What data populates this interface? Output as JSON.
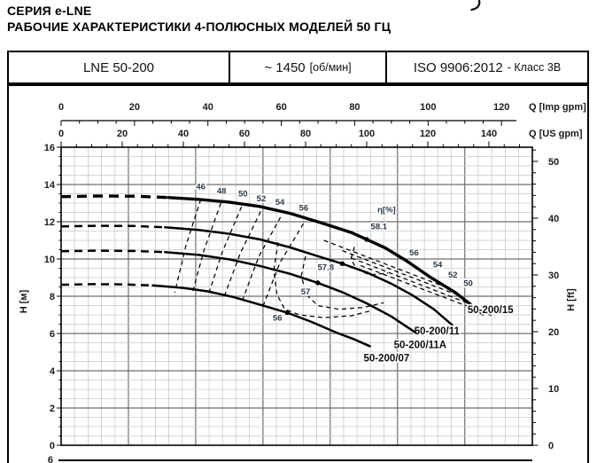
{
  "titles": {
    "series": "СЕРИЯ e-LNE",
    "subtitle": "РАБОЧИЕ ХАРАКТЕРИСТИКИ 4-ПОЛЮСНЫХ МОДЕЛЕЙ 50 ГЦ",
    "top_right_fragment": ")"
  },
  "header_table": {
    "model": "LNE 50-200",
    "speed": "~ 1450",
    "speed_unit": "[об/мин]",
    "standard": "ISO 9906:2012",
    "standard_class": "- Класс 3В"
  },
  "chart_data": {
    "type": "line",
    "title": "Pump performance curves H-Q, LNE 50-200, 4-pole, 50 Hz",
    "x_axes": [
      {
        "id": "imp",
        "label": "Q [Imp gpm]",
        "major_ticks": [
          0,
          20,
          40,
          60,
          80,
          100,
          120
        ],
        "minor_step": 5
      },
      {
        "id": "us",
        "label": "Q [US gpm]",
        "major_ticks": [
          0,
          20,
          40,
          60,
          80,
          100,
          120,
          140
        ],
        "minor_step": 5,
        "range": [
          0,
          154
        ]
      }
    ],
    "y_axis_left": {
      "label": "H [м]",
      "major_ticks": [
        0,
        2,
        4,
        6,
        8,
        10,
        12,
        14,
        16
      ],
      "minor_step": 0.5,
      "range": [
        0,
        16
      ]
    },
    "y_axis_right": {
      "label": "H [ft]",
      "major_ticks": [
        0,
        10,
        20,
        30,
        40,
        50
      ],
      "minor_step": 2
    },
    "grid": {
      "x_minor_usgpm": 4.403,
      "x_major_usgpm": 22.015,
      "y_minor_m": 0.5,
      "y_major_m": 2,
      "grid_on": true
    },
    "series": [
      {
        "name": "50-200/15",
        "width": 3.4,
        "bep": [
          100,
          11.05
        ],
        "label_pos": [
          140.5,
          7.1
        ],
        "dashed": [
          [
            0,
            13.35
          ],
          [
            12,
            13.38
          ],
          [
            24,
            13.37
          ],
          [
            35,
            13.3
          ]
        ],
        "solid": [
          [
            35,
            13.3
          ],
          [
            45,
            13.2
          ],
          [
            55,
            13.05
          ],
          [
            65,
            12.82
          ],
          [
            75,
            12.45
          ],
          [
            85,
            11.95
          ],
          [
            95,
            11.42
          ],
          [
            100,
            11.05
          ],
          [
            106,
            10.6
          ],
          [
            113,
            9.9
          ],
          [
            121,
            9.0
          ],
          [
            129,
            8.2
          ],
          [
            138,
            7.05
          ]
        ]
      },
      {
        "name": "50-200/11",
        "width": 2.5,
        "bep": [
          92,
          9.75
        ],
        "label_pos": [
          123,
          5.95
        ],
        "dashed": [
          [
            0,
            11.75
          ],
          [
            12,
            11.78
          ],
          [
            24,
            11.77
          ],
          [
            34,
            11.7
          ]
        ],
        "solid": [
          [
            34,
            11.7
          ],
          [
            45,
            11.56
          ],
          [
            55,
            11.35
          ],
          [
            65,
            11.05
          ],
          [
            75,
            10.62
          ],
          [
            85,
            10.1
          ],
          [
            92,
            9.75
          ],
          [
            100,
            9.28
          ],
          [
            108,
            8.68
          ],
          [
            115,
            8.05
          ],
          [
            122,
            7.3
          ],
          [
            128,
            6.45
          ]
        ]
      },
      {
        "name": "50-200/11A",
        "width": 2.5,
        "bep": [
          84,
          8.72
        ],
        "label_pos": [
          117.5,
          5.22
        ],
        "dashed": [
          [
            0,
            10.42
          ],
          [
            12,
            10.45
          ],
          [
            24,
            10.43
          ],
          [
            34,
            10.37
          ]
        ],
        "solid": [
          [
            34,
            10.37
          ],
          [
            45,
            10.22
          ],
          [
            55,
            9.98
          ],
          [
            65,
            9.63
          ],
          [
            75,
            9.2
          ],
          [
            84,
            8.72
          ],
          [
            92,
            8.22
          ],
          [
            100,
            7.62
          ],
          [
            108,
            6.92
          ],
          [
            116,
            6.05
          ]
        ]
      },
      {
        "name": "50-200/07",
        "width": 2.5,
        "bep": [
          74,
          7.12
        ],
        "label_pos": [
          106.5,
          4.5
        ],
        "dashed": [
          [
            0,
            8.62
          ],
          [
            10,
            8.65
          ],
          [
            20,
            8.64
          ],
          [
            30,
            8.58
          ]
        ],
        "solid": [
          [
            30,
            8.58
          ],
          [
            40,
            8.45
          ],
          [
            48,
            8.26
          ],
          [
            56,
            7.97
          ],
          [
            64,
            7.6
          ],
          [
            74,
            7.12
          ],
          [
            82,
            6.62
          ],
          [
            90,
            6.05
          ],
          [
            96,
            5.68
          ],
          [
            101,
            5.32
          ]
        ]
      }
    ],
    "efficiency": {
      "header": "η[%]",
      "header_pos": [
        106.5,
        12.5
      ],
      "left_contours": [
        {
          "value": "46",
          "label_pos": [
            45.7,
            13.75
          ],
          "pts": [
            [
              45.7,
              13.2
            ],
            [
              40.8,
              10.7
            ],
            [
              37.2,
              8.2
            ]
          ]
        },
        {
          "value": "48",
          "label_pos": [
            52.5,
            13.5
          ],
          "pts": [
            [
              52.3,
              13.0
            ],
            [
              46.8,
              10.5
            ],
            [
              42.8,
              8.1
            ]
          ]
        },
        {
          "value": "50",
          "label_pos": [
            59.5,
            13.35
          ],
          "pts": [
            [
              59.0,
              12.8
            ],
            [
              52.8,
              10.4
            ],
            [
              48.0,
              8.0
            ]
          ]
        },
        {
          "value": "52",
          "label_pos": [
            65.5,
            13.1
          ],
          "pts": [
            [
              65.3,
              12.55
            ],
            [
              58.6,
              10.3
            ],
            [
              53.2,
              7.9
            ]
          ]
        },
        {
          "value": "54",
          "label_pos": [
            71.6,
            12.9
          ],
          "pts": [
            [
              71.8,
              12.25
            ],
            [
              64.6,
              10.1
            ],
            [
              59.0,
              7.65
            ]
          ]
        },
        {
          "value": "56",
          "label_pos": [
            79.4,
            12.6
          ],
          "pts": [
            [
              79.3,
              11.9
            ],
            [
              71.6,
              9.8
            ],
            [
              65.8,
              7.35
            ]
          ]
        }
      ],
      "right_contours": [
        {
          "value": "56",
          "label_pos": [
            115.5,
            10.2
          ],
          "pts": [
            [
              86,
              11.0
            ],
            [
              126,
              8.48
            ]
          ]
        },
        {
          "value": "54",
          "label_pos": [
            123.2,
            9.55
          ],
          "pts": [
            [
              92,
              10.45
            ],
            [
              130,
              8.05
            ]
          ]
        },
        {
          "value": "52",
          "label_pos": [
            128.2,
            9.0
          ],
          "pts": [
            [
              95,
              10.05
            ],
            [
              137,
              7.38
            ]
          ]
        },
        {
          "value": "50",
          "label_pos": [
            133.2,
            8.55
          ],
          "pts": [
            [
              98,
              9.65
            ],
            [
              142,
              6.9
            ]
          ]
        }
      ],
      "island_arcs": [
        {
          "value": "57",
          "pts": [
            [
              71,
              10.9
            ],
            [
              69.6,
              9.4
            ],
            [
              70.6,
              8.1
            ],
            [
              73.2,
              7.3
            ],
            [
              78,
              7.0
            ],
            [
              86,
              6.85
            ],
            [
              95,
              6.95
            ],
            [
              102,
              7.25
            ]
          ]
        },
        {
          "value": "57.8",
          "pts": [
            [
              80,
              10.15
            ],
            [
              78.6,
              9.1
            ],
            [
              80.2,
              8.1
            ],
            [
              84,
              7.5
            ],
            [
              91,
              7.3
            ],
            [
              99,
              7.4
            ],
            [
              105.5,
              7.65
            ]
          ]
        },
        {
          "value": "58.1",
          "pts": [
            [
              96,
              10.65
            ],
            [
              94.8,
              10.0
            ],
            [
              96.8,
              9.45
            ],
            [
              101,
              9.15
            ],
            [
              107,
              9.25
            ]
          ]
        }
      ],
      "bep_labels": [
        {
          "value": "56",
          "pos": [
            70.8,
            6.68
          ]
        },
        {
          "value": "57",
          "pos": [
            80.0,
            8.1
          ]
        },
        {
          "value": "57.8",
          "pos": [
            86.6,
            9.4
          ]
        },
        {
          "value": "58.1",
          "pos": [
            104.0,
            11.6
          ]
        }
      ]
    },
    "next_panel": {
      "first_tick": "6"
    }
  }
}
